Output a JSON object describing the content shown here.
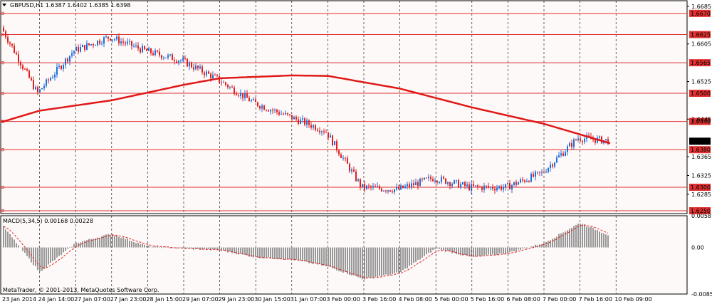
{
  "symbol_header": "GBPUSD,H1  1.6387 1.6402 1.6385 1.6398",
  "copyright": "MetaTrader, © 2001-2013, MetaQuotes Software Corp.",
  "colors": {
    "background": "#fdf9f8",
    "bull_candle": "#1e6fd9",
    "bear_candle": "#e02020",
    "moving_average": "#e01818",
    "level_line": "#e03030",
    "level_label_bg": "#e03030",
    "histogram": "#808080",
    "signal_line": "#e02020",
    "grid": "#000000"
  },
  "chart_data": [
    {
      "type": "candlestick",
      "title": "GBPUSD,H1",
      "ohlc_header": {
        "open": 1.6387,
        "high": 1.6402,
        "low": 1.6385,
        "close": 1.6398
      },
      "current_price_label": "1.6398",
      "y_axis_ticks": [
        "1.6685",
        "1.6605",
        "1.6525",
        "1.6445",
        "1.6365",
        "1.6325",
        "1.6285"
      ],
      "ylim": [
        1.6244,
        1.6697
      ],
      "horizontal_levels": [
        "1.6670",
        "1.6625",
        "1.6565",
        "1.6500",
        "1.6440",
        "1.6380",
        "1.6300",
        "1.6250"
      ],
      "x_tick_labels": [
        "23 Jan 2014",
        "24 Jan 14:00",
        "27 Jan 07:00",
        "27 Jan 23:00",
        "28 Jan 15:00",
        "29 Jan 07:00",
        "29 Jan 23:00",
        "30 Jan 15:00",
        "31 Jan 07:00",
        "3 Feb 00:00",
        "3 Feb 16:00",
        "4 Feb 08:00",
        "5 Feb 00:00",
        "5 Feb 16:00",
        "6 Feb 08:00",
        "7 Feb 00:00",
        "7 Feb 16:00",
        "10 Feb 09:00"
      ],
      "price_path_approx": [
        {
          "x": "23 Jan 2014",
          "close": 1.664
        },
        {
          "x": "24 Jan 14:00",
          "close": 1.65
        },
        {
          "x": "27 Jan 07:00",
          "close": 1.659
        },
        {
          "x": "27 Jan 23:00",
          "close": 1.662
        },
        {
          "x": "28 Jan 15:00",
          "close": 1.659
        },
        {
          "x": "29 Jan 07:00",
          "close": 1.657
        },
        {
          "x": "29 Jan 23:00",
          "close": 1.653
        },
        {
          "x": "30 Jan 15:00",
          "close": 1.648
        },
        {
          "x": "31 Jan 07:00",
          "close": 1.645
        },
        {
          "x": "3 Feb 00:00",
          "close": 1.642
        },
        {
          "x": "3 Feb 16:00",
          "close": 1.63
        },
        {
          "x": "4 Feb 08:00",
          "close": 1.6295
        },
        {
          "x": "5 Feb 00:00",
          "close": 1.632
        },
        {
          "x": "5 Feb 16:00",
          "close": 1.63
        },
        {
          "x": "6 Feb 08:00",
          "close": 1.63
        },
        {
          "x": "7 Feb 00:00",
          "close": 1.633
        },
        {
          "x": "7 Feb 16:00",
          "close": 1.6405
        },
        {
          "x": "10 Feb 09:00",
          "close": 1.6398
        }
      ],
      "moving_average_approx": [
        {
          "x": "23 Jan 2014",
          "value": 1.644
        },
        {
          "x": "24 Jan 14:00",
          "value": 1.6463
        },
        {
          "x": "27 Jan 23:00",
          "value": 1.6485
        },
        {
          "x": "29 Jan 07:00",
          "value": 1.6518
        },
        {
          "x": "29 Jan 23:00",
          "value": 1.6532
        },
        {
          "x": "31 Jan 07:00",
          "value": 1.6538
        },
        {
          "x": "3 Feb 00:00",
          "value": 1.6537
        },
        {
          "x": "4 Feb 08:00",
          "value": 1.651
        },
        {
          "x": "5 Feb 16:00",
          "value": 1.647
        },
        {
          "x": "7 Feb 00:00",
          "value": 1.6435
        },
        {
          "x": "10 Feb 09:00",
          "value": 1.639
        }
      ]
    },
    {
      "type": "bar",
      "title": "MACD(5,34,5) 0.00168 0.00228",
      "y_axis_ticks": [
        "0.0058",
        "0.00",
        "-0.00852"
      ],
      "ylim": [
        -0.00852,
        0.0058
      ],
      "histogram_approx": [
        {
          "x": "23 Jan 2014",
          "value": 0.0038
        },
        {
          "x": "24 Jan 14:00",
          "value": -0.0045
        },
        {
          "x": "27 Jan 07:00",
          "value": 0.0008
        },
        {
          "x": "27 Jan 23:00",
          "value": 0.0025
        },
        {
          "x": "28 Jan 15:00",
          "value": 0.0002
        },
        {
          "x": "29 Jan 07:00",
          "value": -0.0002
        },
        {
          "x": "29 Jan 23:00",
          "value": -0.0005
        },
        {
          "x": "30 Jan 15:00",
          "value": -0.0018
        },
        {
          "x": "31 Jan 07:00",
          "value": -0.0022
        },
        {
          "x": "3 Feb 00:00",
          "value": -0.0035
        },
        {
          "x": "3 Feb 16:00",
          "value": -0.0058
        },
        {
          "x": "4 Feb 08:00",
          "value": -0.0046
        },
        {
          "x": "5 Feb 00:00",
          "value": -0.0002
        },
        {
          "x": "5 Feb 16:00",
          "value": -0.0018
        },
        {
          "x": "6 Feb 08:00",
          "value": -0.001
        },
        {
          "x": "7 Feb 00:00",
          "value": 0.0008
        },
        {
          "x": "7 Feb 16:00",
          "value": 0.0045
        },
        {
          "x": "10 Feb 09:00",
          "value": 0.0017
        }
      ]
    }
  ]
}
